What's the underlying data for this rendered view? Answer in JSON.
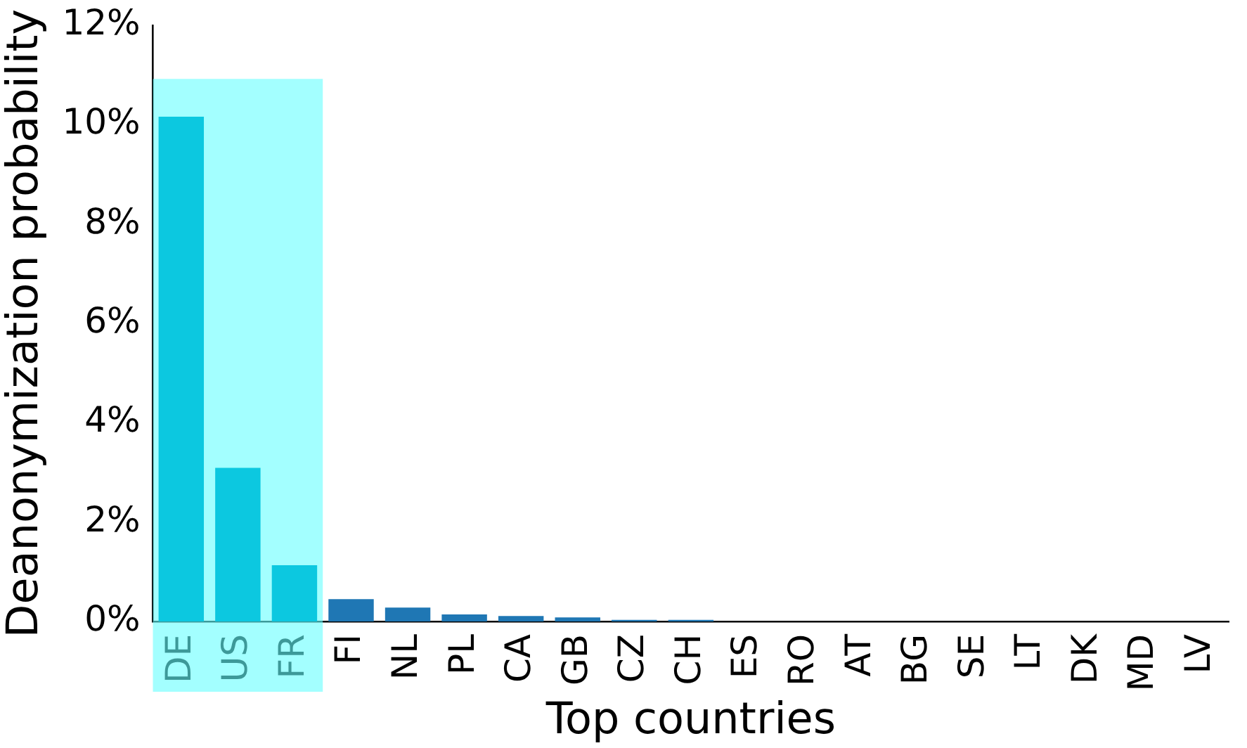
{
  "chart_data": {
    "type": "bar",
    "xlabel": "Top countries",
    "ylabel": "Deanonymization probability",
    "categories": [
      "DE",
      "US",
      "FR",
      "FI",
      "NL",
      "PL",
      "CA",
      "GB",
      "CZ",
      "CH",
      "ES",
      "RO",
      "AT",
      "BG",
      "SE",
      "LT",
      "DK",
      "MD",
      "LV"
    ],
    "values": [
      10.16,
      3.09,
      1.13,
      0.45,
      0.28,
      0.14,
      0.11,
      0.08,
      0.03,
      0.03,
      0,
      0,
      0,
      0,
      0,
      0,
      0,
      0,
      0
    ],
    "colors": [
      "#0cc8e0",
      "#0cc8e0",
      "#0cc8e0",
      "#1f77b4",
      "#1f77b4",
      "#1f77b4",
      "#1f77b4",
      "#1f77b4",
      "#1f77b4",
      "#1f77b4",
      "#1f77b4",
      "#1f77b4",
      "#1f77b4",
      "#1f77b4",
      "#1f77b4",
      "#1f77b4",
      "#1f77b4",
      "#1f77b4",
      "#1f77b4"
    ],
    "ylim": [
      0,
      12
    ],
    "yticks": [
      {
        "value": 0,
        "label": "0%"
      },
      {
        "value": 2,
        "label": "2%"
      },
      {
        "value": 4,
        "label": "4%"
      },
      {
        "value": 6,
        "label": "6%"
      },
      {
        "value": 8,
        "label": "8%"
      },
      {
        "value": 10,
        "label": "10%"
      },
      {
        "value": 12,
        "label": "12%"
      }
    ],
    "bands": [
      {
        "axis": "x",
        "from": "DE",
        "to": "FR",
        "color": "#66ffff"
      }
    ],
    "grid": false,
    "legend": false
  }
}
